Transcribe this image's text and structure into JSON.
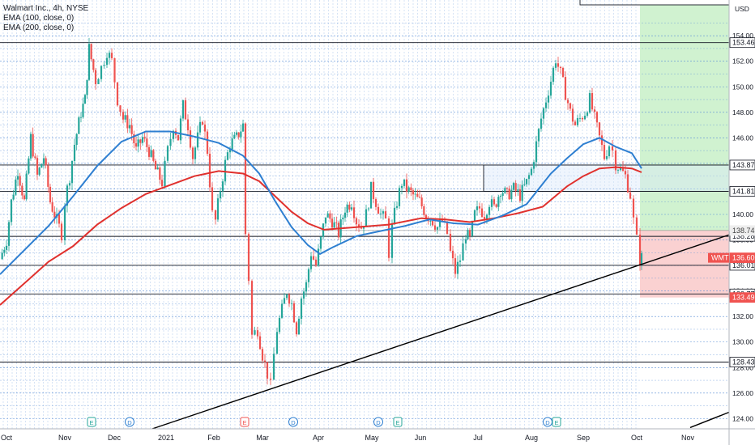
{
  "legend": {
    "title": "Walmart Inc., 4h, NYSE",
    "ema1": "EMA (100, close, 0)",
    "ema2": "EMA (200, close, 0)"
  },
  "currency": "USD",
  "colors": {
    "ema100": "#2e7fd1",
    "ema200": "#e0312e",
    "up": "#26a69a",
    "down": "#ef5350",
    "profit_zone": "#c8f0c8",
    "loss_zone": "#f9c9c9",
    "grid": "#5b8fd6"
  },
  "chart_data": {
    "type": "line",
    "ylim": [
      123.2,
      156.8
    ],
    "xlabels": [
      "Oct",
      "Nov",
      "Dec",
      "2021",
      "Feb",
      "Mar",
      "Apr",
      "May",
      "Jun",
      "Jul",
      "Aug",
      "Sep",
      "Oct",
      "Nov"
    ],
    "yticks": [
      124,
      126,
      128,
      130,
      132,
      134,
      136,
      138,
      140,
      142,
      144,
      146,
      148,
      150,
      152,
      154
    ],
    "levels": [
      153.46,
      143.87,
      141.81,
      138.28,
      136.01,
      133.77,
      128.43
    ],
    "zone_top_label": "138.74",
    "current_price": {
      "symbol": "WMT",
      "value": 136.6
    },
    "stop_label": "133.49",
    "price": [
      [
        0,
        136.5
      ],
      [
        8,
        138
      ],
      [
        14,
        141
      ],
      [
        22,
        143.5
      ],
      [
        30,
        141
      ],
      [
        38,
        146
      ],
      [
        46,
        143
      ],
      [
        54,
        144.5
      ],
      [
        62,
        141
      ],
      [
        70,
        139.5
      ],
      [
        76,
        138.5
      ],
      [
        80,
        141
      ],
      [
        86,
        143
      ],
      [
        92,
        145.5
      ],
      [
        100,
        148
      ],
      [
        105,
        149
      ],
      [
        110,
        153
      ],
      [
        118,
        150.5
      ],
      [
        125,
        151.5
      ],
      [
        132,
        152.8
      ],
      [
        138,
        152
      ],
      [
        145,
        149
      ],
      [
        152,
        147.5
      ],
      [
        160,
        147
      ],
      [
        168,
        145
      ],
      [
        176,
        146
      ],
      [
        184,
        145
      ],
      [
        192,
        143.5
      ],
      [
        200,
        142.5
      ],
      [
        207,
        145
      ],
      [
        214,
        147
      ],
      [
        220,
        146
      ],
      [
        226,
        148.5
      ],
      [
        232,
        147
      ],
      [
        238,
        144.5
      ],
      [
        244,
        146
      ],
      [
        250,
        147.5
      ],
      [
        256,
        145
      ],
      [
        262,
        140
      ],
      [
        266,
        139.5
      ],
      [
        272,
        142
      ],
      [
        278,
        144
      ],
      [
        284,
        145.5
      ],
      [
        292,
        146
      ],
      [
        300,
        147
      ],
      [
        303,
        138.5
      ],
      [
        307,
        135
      ],
      [
        311,
        130.5
      ],
      [
        318,
        131
      ],
      [
        324,
        129
      ],
      [
        330,
        127.5
      ],
      [
        334,
        126.5
      ],
      [
        338,
        129
      ],
      [
        342,
        131
      ],
      [
        348,
        132.5
      ],
      [
        354,
        134
      ],
      [
        360,
        133
      ],
      [
        366,
        131
      ],
      [
        372,
        133.5
      ],
      [
        378,
        134.5
      ],
      [
        384,
        137
      ],
      [
        390,
        136
      ],
      [
        396,
        138
      ],
      [
        402,
        140
      ],
      [
        410,
        139.5
      ],
      [
        418,
        138.5
      ],
      [
        426,
        140.5
      ],
      [
        434,
        141
      ],
      [
        440,
        139.5
      ],
      [
        446,
        139
      ],
      [
        452,
        140
      ],
      [
        458,
        142
      ],
      [
        464,
        141
      ],
      [
        470,
        140
      ],
      [
        476,
        139.5
      ],
      [
        480,
        137
      ],
      [
        484,
        139
      ],
      [
        490,
        141
      ],
      [
        496,
        142.5
      ],
      [
        502,
        142
      ],
      [
        510,
        141.5
      ],
      [
        518,
        141
      ],
      [
        526,
        140
      ],
      [
        534,
        139.5
      ],
      [
        540,
        139
      ],
      [
        546,
        139.5
      ],
      [
        552,
        138.5
      ],
      [
        556,
        137
      ],
      [
        562,
        135.5
      ],
      [
        568,
        136.5
      ],
      [
        575,
        138.5
      ],
      [
        580,
        138
      ],
      [
        586,
        140
      ],
      [
        592,
        140.5
      ],
      [
        598,
        140
      ],
      [
        604,
        141
      ],
      [
        610,
        140.5
      ],
      [
        618,
        142
      ],
      [
        626,
        141.5
      ],
      [
        634,
        142
      ],
      [
        642,
        141.5
      ],
      [
        650,
        142.5
      ],
      [
        656,
        143.5
      ],
      [
        662,
        145.5
      ],
      [
        668,
        147.5
      ],
      [
        674,
        149
      ],
      [
        680,
        150.5
      ],
      [
        686,
        152.2
      ],
      [
        692,
        151
      ],
      [
        698,
        149.5
      ],
      [
        704,
        148
      ],
      [
        710,
        147
      ],
      [
        716,
        147.5
      ],
      [
        722,
        148
      ],
      [
        728,
        149
      ],
      [
        734,
        147.5
      ],
      [
        740,
        146
      ],
      [
        746,
        144.5
      ],
      [
        752,
        145.5
      ],
      [
        756,
        145
      ],
      [
        760,
        144
      ],
      [
        766,
        143.5
      ],
      [
        772,
        143
      ],
      [
        778,
        141.5
      ],
      [
        782,
        139.5
      ],
      [
        786,
        138
      ],
      [
        790,
        136.5
      ],
      [
        792,
        136.6
      ]
    ],
    "ema100": [
      [
        0,
        135.3
      ],
      [
        30,
        137.2
      ],
      [
        60,
        139.1
      ],
      [
        90,
        141.4
      ],
      [
        120,
        143.8
      ],
      [
        150,
        145.7
      ],
      [
        180,
        146.5
      ],
      [
        210,
        146.5
      ],
      [
        240,
        146.1
      ],
      [
        270,
        145.6
      ],
      [
        300,
        144.6
      ],
      [
        320,
        143.2
      ],
      [
        340,
        141
      ],
      [
        360,
        139
      ],
      [
        380,
        137.6
      ],
      [
        395,
        136.9
      ],
      [
        410,
        137.4
      ],
      [
        440,
        138.3
      ],
      [
        470,
        138.7
      ],
      [
        500,
        139.1
      ],
      [
        530,
        139.6
      ],
      [
        560,
        139.3
      ],
      [
        590,
        139.2
      ],
      [
        620,
        139.9
      ],
      [
        650,
        140.8
      ],
      [
        680,
        143.2
      ],
      [
        700,
        144.4
      ],
      [
        720,
        145.5
      ],
      [
        740,
        146
      ],
      [
        760,
        145.3
      ],
      [
        780,
        144.8
      ],
      [
        792,
        143.6
      ]
    ],
    "ema200": [
      [
        0,
        132.9
      ],
      [
        30,
        134.6
      ],
      [
        60,
        136.3
      ],
      [
        90,
        137.5
      ],
      [
        120,
        139.2
      ],
      [
        150,
        140.5
      ],
      [
        180,
        141.6
      ],
      [
        210,
        142.3
      ],
      [
        240,
        143
      ],
      [
        270,
        143.4
      ],
      [
        300,
        143.2
      ],
      [
        320,
        142.6
      ],
      [
        340,
        141.4
      ],
      [
        360,
        140.2
      ],
      [
        380,
        139.3
      ],
      [
        400,
        138.8
      ],
      [
        440,
        139
      ],
      [
        480,
        139.2
      ],
      [
        520,
        139.7
      ],
      [
        550,
        139.6
      ],
      [
        580,
        139.4
      ],
      [
        610,
        139.7
      ],
      [
        640,
        140.1
      ],
      [
        670,
        140.6
      ],
      [
        700,
        142.2
      ],
      [
        720,
        143
      ],
      [
        740,
        143.6
      ],
      [
        760,
        143.7
      ],
      [
        780,
        143.6
      ],
      [
        792,
        143.3
      ]
    ],
    "trendlines": [
      {
        "from": [
          188,
          123.2
        ],
        "to": [
          900,
          138.4
        ]
      },
      {
        "from": [
          852,
          123.3
        ],
        "to": [
          900,
          124.5
        ]
      }
    ]
  }
}
